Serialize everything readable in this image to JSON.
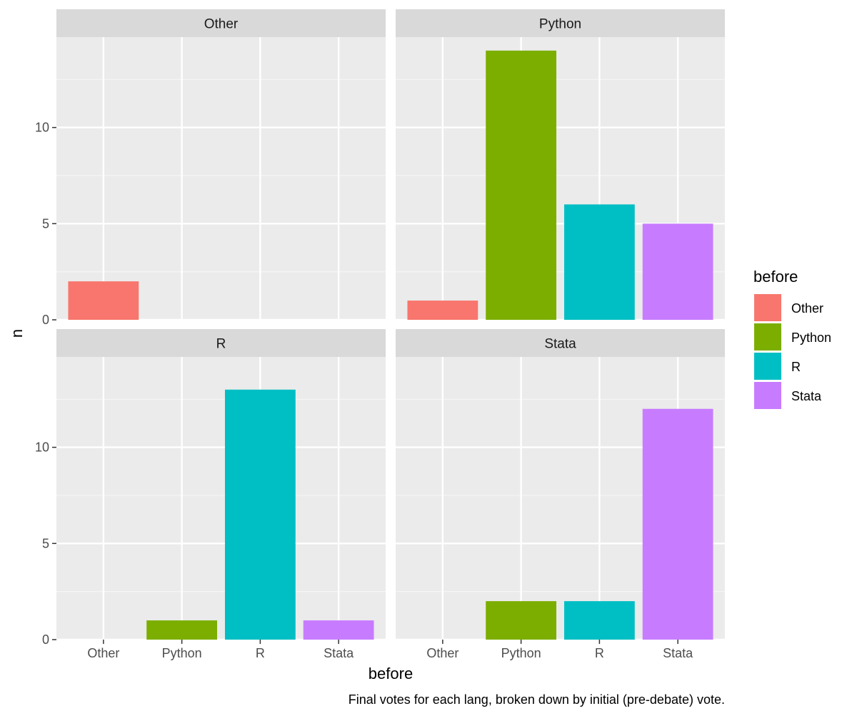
{
  "chart_data": {
    "type": "bar",
    "facet_by": "final vote",
    "categories": [
      "Other",
      "Python",
      "R",
      "Stata"
    ],
    "facets": [
      {
        "title": "Other",
        "values": [
          2,
          0,
          0,
          0
        ]
      },
      {
        "title": "Python",
        "values": [
          1,
          14,
          6,
          5
        ]
      },
      {
        "title": "R",
        "values": [
          0,
          1,
          13,
          1
        ]
      },
      {
        "title": "Stata",
        "values": [
          0,
          2,
          2,
          12
        ]
      }
    ],
    "xlabel": "before",
    "ylabel": "n",
    "ylim": [
      0,
      14.7
    ],
    "yticks": [
      0,
      5,
      10
    ],
    "grid": true,
    "legend": {
      "title": "before",
      "position": "right",
      "entries": [
        "Other",
        "Python",
        "R",
        "Stata"
      ]
    },
    "colors": {
      "Other": "#F8766D",
      "Python": "#7CAE00",
      "R": "#00BFC4",
      "Stata": "#C77CFF"
    },
    "caption": "Final votes for each lang, broken down by initial (pre-debate) vote."
  }
}
